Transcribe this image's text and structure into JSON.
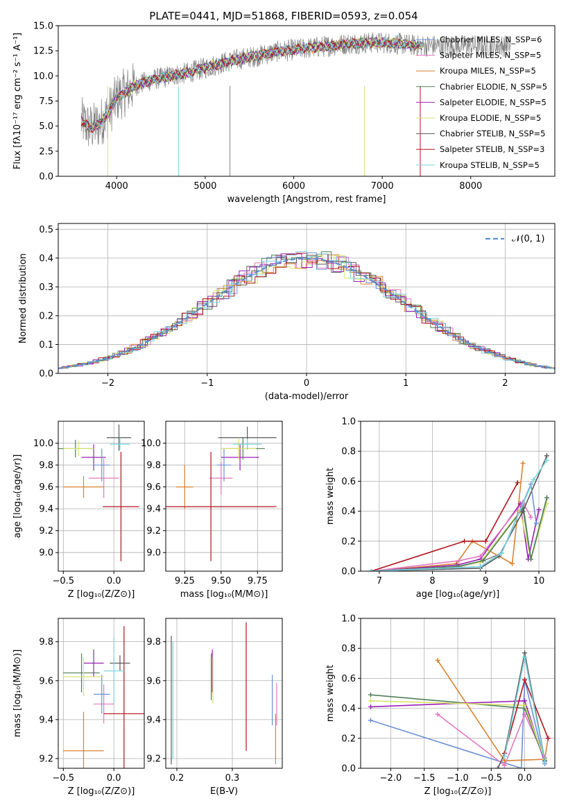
{
  "page_title": "PLATE=0441, MJD=51868, FIBERID=0593, z=0.054",
  "colors": [
    "#e377c2",
    "#d8822f",
    "#4f7f57",
    "#9a1fb8",
    "#d7e36c",
    "#5a5a5a",
    "#b0121b",
    "#7bd6e0",
    "#6b8fd9",
    "#808080"
  ],
  "chart_data": [
    {
      "type": "line",
      "title": "PLATE=0441, MJD=51868, FIBERID=0593, z=0.054",
      "xlabel": "wavelength [Angstrom, rest frame]",
      "ylabel": "Flux [fλ10⁻¹⁷ erg cm⁻² s⁻¹ A⁻¹]",
      "xlim": [
        3340,
        8950
      ],
      "ylim": [
        0,
        15
      ],
      "xticks": [
        "4000",
        "5000",
        "6000",
        "7000",
        "8000"
      ],
      "yticks": [
        "0.0",
        "2.5",
        "5.0",
        "7.5",
        "10.0",
        "12.5",
        "15.0"
      ],
      "legend_position": "right",
      "series": [
        {
          "name": "Chabrier MILES, N_SSP=6",
          "color": "#6b8fd9"
        },
        {
          "name": "Salpeter MILES, N_SSP=5",
          "color": "#e377c2"
        },
        {
          "name": "Kroupa MILES, N_SSP=5",
          "color": "#d8822f"
        },
        {
          "name": "Chabrier ELODIE, N_SSP=5",
          "color": "#4f7f57"
        },
        {
          "name": "Salpeter ELODIE, N_SSP=5",
          "color": "#9a1fb8"
        },
        {
          "name": "Kroupa ELODIE, N_SSP=5",
          "color": "#d7e36c"
        },
        {
          "name": "Chabrier STELIB, N_SSP=5",
          "color": "#5a5a5a"
        },
        {
          "name": "Salpeter STELIB, N_SSP=3",
          "color": "#b0121b"
        },
        {
          "name": "Kroupa STELIB, N_SSP=5",
          "color": "#7bd6e0"
        }
      ],
      "continuum": {
        "x": [
          3600,
          3700,
          3800,
          3900,
          4000,
          4200,
          4400,
          4600,
          4800,
          5000,
          5200,
          5400,
          5600,
          5800,
          6000,
          6200,
          6400,
          6600,
          6800,
          7000,
          7200,
          7400
        ],
        "y": [
          5.5,
          4.8,
          5.2,
          6.2,
          7.8,
          9.0,
          9.6,
          10.0,
          10.3,
          10.8,
          11.3,
          11.7,
          12.0,
          12.4,
          12.6,
          12.8,
          13.0,
          13.2,
          13.3,
          13.3,
          13.2,
          13.0
        ]
      },
      "data_extent": [
        3600,
        8450
      ]
    },
    {
      "type": "line",
      "xlabel": "(data-model)/error",
      "ylabel": "Normed distribution",
      "xlim": [
        -2.5,
        2.5
      ],
      "ylim": [
        0,
        0.52
      ],
      "xticks": [
        "−2",
        "−1",
        "0",
        "1",
        "2"
      ],
      "yticks": [
        "0.0",
        "0.1",
        "0.2",
        "0.3",
        "0.4",
        "0.5"
      ],
      "legend": "𝒩(0, 1)",
      "legend_position": "top-right",
      "gaussian": {
        "mu": 0,
        "sigma": 1
      }
    },
    {
      "type": "scatter",
      "xlabel": "Z [log₁₀(Z/Z⊙)]",
      "ylabel": "age  [log₁₀(age/yr)]",
      "xlim": [
        -0.55,
        0.3
      ],
      "ylim": [
        8.83,
        10.2
      ],
      "xticks": [
        "−0.5",
        "0.0"
      ],
      "yticks": [
        "9.0",
        "9.2",
        "9.4",
        "9.6",
        "9.8",
        "10.0"
      ],
      "points": [
        {
          "x": -0.3,
          "y": 9.6,
          "xerr": 0.2,
          "yerr": 0.1,
          "color": "#d8822f"
        },
        {
          "x": -0.1,
          "y": 9.68,
          "xerr": 0.15,
          "yerr": 0.18,
          "color": "#e377c2"
        },
        {
          "x": 0.07,
          "y": 9.42,
          "xerr": 0.18,
          "yerr": 0.5,
          "color": "#b0121b"
        },
        {
          "x": -0.2,
          "y": 9.87,
          "xerr": 0.12,
          "yerr": 0.12,
          "color": "#9a1fb8"
        },
        {
          "x": -0.12,
          "y": 9.8,
          "xerr": 0.08,
          "yerr": 0.15,
          "color": "#6b8fd9"
        },
        {
          "x": 0.05,
          "y": 10.05,
          "xerr": 0.12,
          "yerr": 0.12,
          "color": "#5a5a5a"
        },
        {
          "x": -0.38,
          "y": 9.95,
          "xerr": 0.18,
          "yerr": 0.08,
          "color": "#4f7f57"
        },
        {
          "x": -0.35,
          "y": 9.95,
          "xerr": 0.15,
          "yerr": 0.07,
          "color": "#d7e36c"
        },
        {
          "x": 0.06,
          "y": 9.99,
          "xerr": 0.1,
          "yerr": 0.05,
          "color": "#7bd6e0"
        }
      ]
    },
    {
      "type": "scatter",
      "xlabel": "mass [log₁₀(M/M⊙)]",
      "xlim": [
        9.12,
        9.92
      ],
      "ylim": [
        8.83,
        10.2
      ],
      "xticks": [
        "9.25",
        "9.50",
        "9.75"
      ],
      "points": [
        {
          "x": 9.25,
          "y": 9.6,
          "xerr": 0.06,
          "yerr": 0.2,
          "color": "#d8822f"
        },
        {
          "x": 9.5,
          "y": 9.68,
          "xerr": 0.08,
          "yerr": 0.15,
          "color": "#e377c2"
        },
        {
          "x": 9.43,
          "y": 9.42,
          "xerr": 0.45,
          "yerr": 0.5,
          "color": "#b0121b"
        },
        {
          "x": 9.63,
          "y": 9.87,
          "xerr": 0.13,
          "yerr": 0.12,
          "color": "#9a1fb8"
        },
        {
          "x": 9.52,
          "y": 9.8,
          "xerr": 0.05,
          "yerr": 0.15,
          "color": "#6b8fd9"
        },
        {
          "x": 9.68,
          "y": 10.05,
          "xerr": 0.2,
          "yerr": 0.1,
          "color": "#5a5a5a"
        },
        {
          "x": 9.65,
          "y": 9.95,
          "xerr": 0.15,
          "yerr": 0.1,
          "color": "#4f7f57"
        },
        {
          "x": 9.62,
          "y": 9.95,
          "xerr": 0.12,
          "yerr": 0.1,
          "color": "#d7e36c"
        },
        {
          "x": 9.68,
          "y": 9.99,
          "xerr": 0.1,
          "yerr": 0.05,
          "color": "#7bd6e0"
        }
      ]
    },
    {
      "type": "line",
      "xlabel": "age  [log₁₀(age/yr)]",
      "ylabel": "mass weight",
      "xlim": [
        6.65,
        10.3
      ],
      "ylim": [
        0,
        1
      ],
      "xticks": [
        "7",
        "8",
        "9",
        "10"
      ],
      "yticks": [
        "0.0",
        "0.2",
        "0.4",
        "0.6",
        "0.8",
        "1.0"
      ],
      "series": [
        {
          "color": "#808080",
          "x": [
            6.85,
            8.5,
            8.9,
            9.3,
            9.7,
            9.85,
            10.15
          ],
          "y": [
            0.0,
            0.03,
            0.06,
            0.12,
            0.45,
            0.08,
            0.49
          ]
        },
        {
          "color": "#d8822f",
          "x": [
            6.85,
            8.45,
            8.75,
            9.5,
            9.7
          ],
          "y": [
            0.0,
            0.05,
            0.2,
            0.05,
            0.72
          ]
        },
        {
          "color": "#b0121b",
          "x": [
            6.85,
            8.6,
            9.0,
            9.6
          ],
          "y": [
            0.0,
            0.2,
            0.2,
            0.59
          ]
        },
        {
          "color": "#9a1fb8",
          "x": [
            6.85,
            8.45,
            8.9,
            9.65,
            9.8,
            10.0
          ],
          "y": [
            0.0,
            0.04,
            0.08,
            0.45,
            0.08,
            0.41
          ]
        },
        {
          "color": "#e377c2",
          "x": [
            6.85,
            8.5,
            8.9,
            9.7,
            9.85
          ],
          "y": [
            0.0,
            0.07,
            0.1,
            0.46,
            0.36
          ]
        },
        {
          "color": "#d7e36c",
          "x": [
            6.85,
            8.45,
            8.9,
            9.65,
            9.85,
            10.15
          ],
          "y": [
            0.0,
            0.03,
            0.06,
            0.4,
            0.08,
            0.45
          ]
        },
        {
          "color": "#4f7f57",
          "x": [
            6.85,
            8.45,
            8.95,
            9.7,
            9.85,
            10.15
          ],
          "y": [
            0.0,
            0.03,
            0.07,
            0.42,
            0.08,
            0.49
          ]
        },
        {
          "color": "#5a5a5a",
          "x": [
            6.85,
            8.9,
            9.25,
            9.7,
            10.15
          ],
          "y": [
            0.0,
            0.02,
            0.1,
            0.4,
            0.77
          ]
        },
        {
          "color": "#6b8fd9",
          "x": [
            6.85,
            8.9,
            9.3,
            9.85,
            9.95
          ],
          "y": [
            0.0,
            0.03,
            0.12,
            0.58,
            0.32
          ]
        },
        {
          "color": "#7bd6e0",
          "x": [
            6.85,
            8.9,
            9.3,
            9.9,
            10.15
          ],
          "y": [
            0.0,
            0.03,
            0.12,
            0.61,
            0.74
          ]
        }
      ]
    },
    {
      "type": "scatter",
      "xlabel": "Z [log₁₀(Z/Z⊙)]",
      "ylabel": "mass [log₁₀(M/M⊙)]",
      "xlim": [
        -0.55,
        0.3
      ],
      "ylim": [
        9.15,
        9.92
      ],
      "xticks": [
        "−0.5",
        "0.0"
      ],
      "yticks": [
        "9.2",
        "9.4",
        "9.6",
        "9.8"
      ],
      "points": [
        {
          "x": -0.3,
          "y": 9.24,
          "xerr": 0.2,
          "yerr": 0.2,
          "color": "#d8822f"
        },
        {
          "x": -0.1,
          "y": 9.48,
          "xerr": 0.1,
          "yerr": 0.1,
          "color": "#e377c2"
        },
        {
          "x": 0.1,
          "y": 9.43,
          "xerr": 0.2,
          "yerr": 0.45,
          "color": "#b0121b"
        },
        {
          "x": -0.2,
          "y": 9.69,
          "xerr": 0.1,
          "yerr": 0.07,
          "color": "#9a1fb8"
        },
        {
          "x": -0.12,
          "y": 9.53,
          "xerr": 0.08,
          "yerr": 0.1,
          "color": "#6b8fd9"
        },
        {
          "x": 0.06,
          "y": 9.69,
          "xerr": 0.1,
          "yerr": 0.04,
          "color": "#5a5a5a"
        },
        {
          "x": -0.32,
          "y": 9.64,
          "xerr": 0.18,
          "yerr": 0.1,
          "color": "#4f7f57"
        },
        {
          "x": -0.3,
          "y": 9.62,
          "xerr": 0.2,
          "yerr": 0.1,
          "color": "#d7e36c"
        },
        {
          "x": 0.0,
          "y": 9.65,
          "xerr": 0.1,
          "yerr": 0.17,
          "color": "#7bd6e0"
        }
      ]
    },
    {
      "type": "scatter",
      "xlabel": "E(B-V)",
      "xlim": [
        0.18,
        0.39
      ],
      "ylim": [
        9.15,
        9.92
      ],
      "xticks": [
        "0.2",
        "0.3"
      ],
      "points": [
        {
          "x": 0.378,
          "y": 9.3,
          "yerr": 0.13,
          "color": "#d8822f"
        },
        {
          "x": 0.38,
          "y": 9.48,
          "yerr": 0.11,
          "color": "#e377c2"
        },
        {
          "x": 0.325,
          "y": 9.57,
          "yerr": 0.33,
          "color": "#b0121b"
        },
        {
          "x": 0.264,
          "y": 9.65,
          "yerr": 0.11,
          "color": "#9a1fb8"
        },
        {
          "x": 0.372,
          "y": 9.5,
          "yerr": 0.13,
          "color": "#6b8fd9"
        },
        {
          "x": 0.19,
          "y": 9.5,
          "yerr": 0.33,
          "color": "#5a5a5a"
        },
        {
          "x": 0.262,
          "y": 9.62,
          "yerr": 0.12,
          "color": "#4f7f57"
        },
        {
          "x": 0.265,
          "y": 9.6,
          "yerr": 0.12,
          "color": "#d7e36c"
        },
        {
          "x": 0.193,
          "y": 9.5,
          "yerr": 0.3,
          "color": "#7bd6e0"
        }
      ]
    },
    {
      "type": "line",
      "xlabel": "Z [log₁₀(Z/Z⊙)]",
      "ylabel": "mass weight",
      "xlim": [
        -2.45,
        0.45
      ],
      "ylim": [
        0,
        1
      ],
      "xticks": [
        "−2.0",
        "−1.5",
        "−1.0",
        "−0.5",
        "0.0"
      ],
      "yticks": [
        "0.0",
        "0.2",
        "0.4",
        "0.6",
        "0.8",
        "1.0"
      ],
      "series": [
        {
          "color": "#6b8fd9",
          "x": [
            -2.3,
            -0.05,
            0.0,
            0.3
          ],
          "y": [
            0.32,
            0.0,
            0.59,
            0.03
          ]
        },
        {
          "color": "#d8822f",
          "x": [
            -1.3,
            -0.3,
            0.3,
            0.35
          ],
          "y": [
            0.72,
            0.05,
            0.06,
            0.2
          ]
        },
        {
          "color": "#e377c2",
          "x": [
            -1.3,
            -0.3,
            0.0,
            0.3
          ],
          "y": [
            0.36,
            0.02,
            0.36,
            0.07
          ]
        },
        {
          "color": "#4f7f57",
          "x": [
            -2.3,
            0.0,
            0.3
          ],
          "y": [
            0.49,
            0.4,
            0.05
          ]
        },
        {
          "color": "#9a1fb8",
          "x": [
            -2.3,
            0.0,
            0.3
          ],
          "y": [
            0.41,
            0.45,
            0.04
          ]
        },
        {
          "color": "#d7e36c",
          "x": [
            -2.3,
            0.0,
            0.3
          ],
          "y": [
            0.45,
            0.42,
            0.06
          ]
        },
        {
          "color": "#5a5a5a",
          "x": [
            -0.4,
            -0.3,
            0.0,
            0.3
          ],
          "y": [
            0.0,
            0.1,
            0.77,
            0.05
          ]
        },
        {
          "color": "#b0121b",
          "x": [
            -0.3,
            0.0,
            0.35
          ],
          "y": [
            0.1,
            0.59,
            0.2
          ]
        },
        {
          "color": "#7bd6e0",
          "x": [
            -0.3,
            0.0,
            0.3
          ],
          "y": [
            0.08,
            0.74,
            0.04
          ]
        }
      ]
    }
  ]
}
